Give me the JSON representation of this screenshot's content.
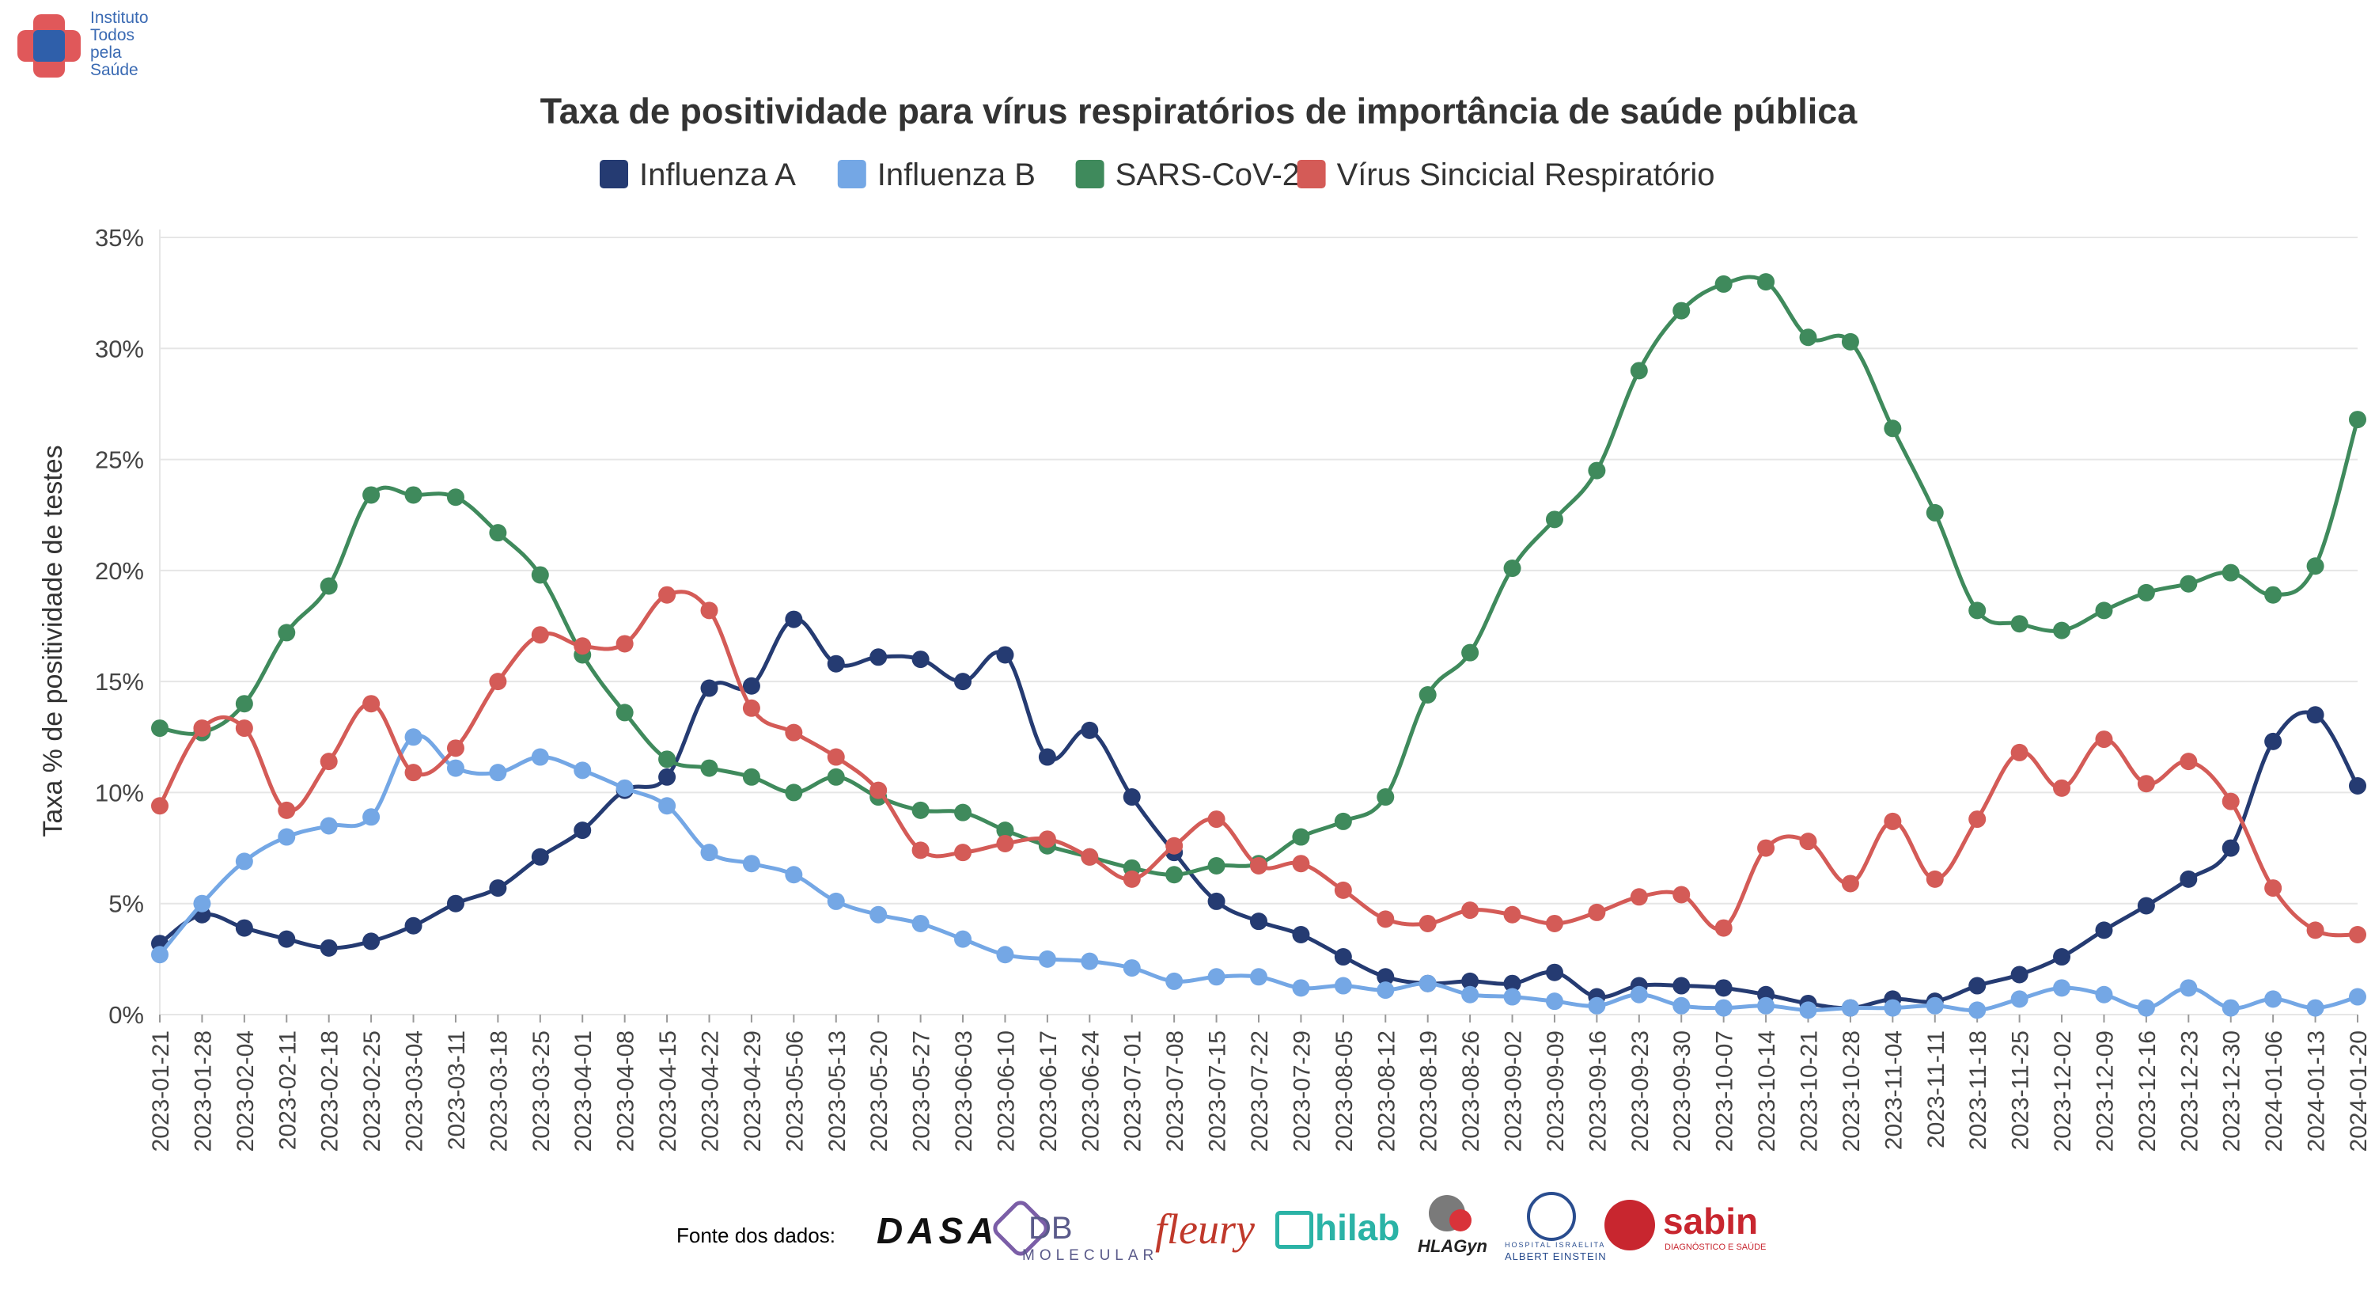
{
  "logo": {
    "lines": [
      "Instituto",
      "Todos",
      "pela",
      "Saúde"
    ],
    "colors": {
      "blue": "#2f5faa",
      "red": "#e0585a",
      "text": "#3a6ab3"
    }
  },
  "chart_data": {
    "type": "line",
    "title": "Taxa de positividade para vírus respiratórios de importância de saúde pública",
    "ylabel": "Taxa % de positividade de testes",
    "xlabel": "",
    "ylim": [
      0,
      35
    ],
    "yticks": [
      "0%",
      "5%",
      "10%",
      "15%",
      "20%",
      "25%",
      "30%",
      "35%"
    ],
    "grid": true,
    "legend_position": "top",
    "x": [
      "2023-01-21",
      "2023-01-28",
      "2023-02-04",
      "2023-02-11",
      "2023-02-18",
      "2023-02-25",
      "2023-03-04",
      "2023-03-11",
      "2023-03-18",
      "2023-03-25",
      "2023-04-01",
      "2023-04-08",
      "2023-04-15",
      "2023-04-22",
      "2023-04-29",
      "2023-05-06",
      "2023-05-13",
      "2023-05-20",
      "2023-05-27",
      "2023-06-03",
      "2023-06-10",
      "2023-06-17",
      "2023-06-24",
      "2023-07-01",
      "2023-07-08",
      "2023-07-15",
      "2023-07-22",
      "2023-07-29",
      "2023-08-05",
      "2023-08-12",
      "2023-08-19",
      "2023-08-26",
      "2023-09-02",
      "2023-09-09",
      "2023-09-16",
      "2023-09-23",
      "2023-09-30",
      "2023-10-07",
      "2023-10-14",
      "2023-10-21",
      "2023-10-28",
      "2023-11-04",
      "2023-11-11",
      "2023-11-18",
      "2023-11-25",
      "2023-12-02",
      "2023-12-09",
      "2023-12-16",
      "2023-12-23",
      "2023-12-30",
      "2024-01-06",
      "2024-01-13",
      "2024-01-20"
    ],
    "series": [
      {
        "name": "Influenza A",
        "color": "#253b72",
        "values": [
          3.2,
          4.5,
          3.9,
          3.4,
          3.0,
          3.3,
          4.0,
          5.0,
          5.7,
          7.1,
          8.3,
          10.1,
          10.7,
          14.7,
          14.8,
          17.8,
          15.8,
          16.1,
          16.0,
          15.0,
          16.2,
          11.6,
          12.8,
          9.8,
          7.3,
          5.1,
          4.2,
          3.6,
          2.6,
          1.7,
          1.4,
          1.5,
          1.4,
          1.9,
          0.8,
          1.3,
          1.3,
          1.2,
          0.9,
          0.5,
          0.3,
          0.7,
          0.6,
          1.3,
          1.8,
          2.6,
          3.8,
          4.9,
          6.1,
          7.5,
          12.3,
          13.5,
          10.3
        ]
      },
      {
        "name": "Influenza B",
        "color": "#74a7e5",
        "values": [
          2.7,
          5.0,
          6.9,
          8.0,
          8.5,
          8.9,
          12.5,
          11.1,
          10.9,
          11.6,
          11.0,
          10.2,
          9.4,
          7.3,
          6.8,
          6.3,
          5.1,
          4.5,
          4.1,
          3.4,
          2.7,
          2.5,
          2.4,
          2.1,
          1.5,
          1.7,
          1.7,
          1.2,
          1.3,
          1.1,
          1.4,
          0.9,
          0.8,
          0.6,
          0.4,
          0.9,
          0.4,
          0.3,
          0.4,
          0.2,
          0.3,
          0.3,
          0.4,
          0.2,
          0.7,
          1.2,
          0.9,
          0.3,
          1.2,
          0.3,
          0.7,
          0.3,
          0.8
        ]
      },
      {
        "name": "SARS-CoV-2",
        "color": "#3f8a5c",
        "values": [
          12.9,
          12.7,
          14.0,
          17.2,
          19.3,
          23.4,
          23.4,
          23.3,
          21.7,
          19.8,
          16.2,
          13.6,
          11.5,
          11.1,
          10.7,
          10.0,
          10.7,
          9.8,
          9.2,
          9.1,
          8.3,
          7.6,
          7.1,
          6.6,
          6.3,
          6.7,
          6.8,
          8.0,
          8.7,
          9.8,
          14.4,
          16.3,
          20.1,
          22.3,
          24.5,
          29.0,
          31.7,
          32.9,
          33.0,
          30.5,
          30.3,
          26.4,
          22.6,
          18.2,
          17.6,
          17.3,
          18.2,
          19.0,
          19.4,
          19.9,
          18.9,
          20.2,
          26.8
        ]
      },
      {
        "name": "Vírus Sincicial Respiratório",
        "color": "#d45b57",
        "values": [
          9.4,
          12.9,
          12.9,
          9.2,
          11.4,
          14.0,
          10.9,
          12.0,
          15.0,
          17.1,
          16.6,
          16.7,
          18.9,
          18.2,
          13.8,
          12.7,
          11.6,
          10.1,
          7.4,
          7.3,
          7.7,
          7.9,
          7.1,
          6.1,
          7.6,
          8.8,
          6.7,
          6.8,
          5.6,
          4.3,
          4.1,
          4.7,
          4.5,
          4.1,
          4.6,
          5.3,
          5.4,
          3.9,
          7.5,
          7.8,
          5.9,
          8.7,
          6.1,
          8.8,
          11.8,
          10.2,
          12.4,
          10.4,
          11.4,
          9.6,
          5.7,
          3.8,
          3.6
        ]
      }
    ]
  },
  "sources": {
    "label": "Fonte dos dados:",
    "logos": [
      {
        "name": "dasa",
        "text": "DASA"
      },
      {
        "name": "db-molecular",
        "text": "DB",
        "subtext": "MOLECULAR"
      },
      {
        "name": "fleury",
        "text": "fleury"
      },
      {
        "name": "hilab",
        "text": "hilab"
      },
      {
        "name": "hlagyn",
        "text": "HLAGyn"
      },
      {
        "name": "albert-einstein",
        "text": "HOSPITAL ISRAELITA",
        "subtext": "ALBERT EINSTEIN"
      },
      {
        "name": "sabin",
        "text": "sabin",
        "subtext": "DIAGNÓSTICO E SAÚDE"
      }
    ]
  }
}
